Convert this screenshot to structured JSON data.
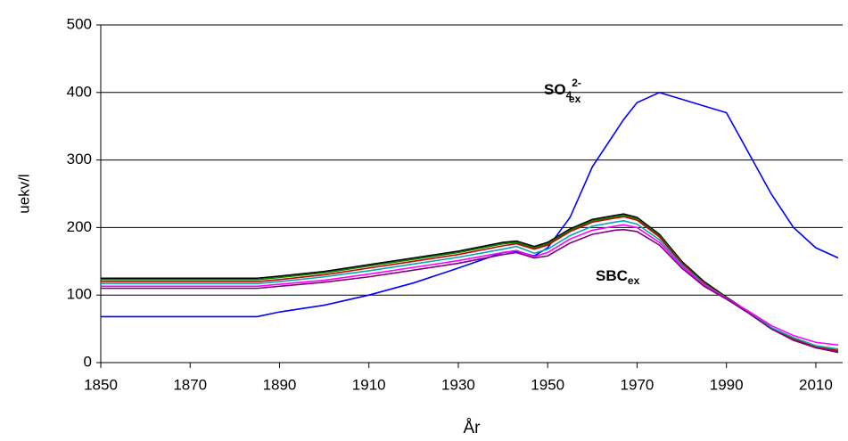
{
  "chart_data": {
    "type": "line",
    "x_label": "År",
    "y_label": "uekv/l",
    "x": [
      1850,
      1885,
      1890,
      1900,
      1910,
      1920,
      1930,
      1940,
      1943,
      1947,
      1950,
      1955,
      1960,
      1965,
      1967,
      1970,
      1975,
      1980,
      1985,
      1990,
      1995,
      2000,
      2005,
      2010,
      2015
    ],
    "series": [
      {
        "color": "#0000ff",
        "values": [
          68,
          68,
          75,
          85,
          100,
          118,
          140,
          163,
          165,
          158,
          170,
          215,
          290,
          340,
          360,
          385,
          400,
          390,
          380,
          370,
          310,
          250,
          200,
          170,
          155
        ]
      },
      {
        "color": "#000000",
        "values": [
          125,
          125,
          128,
          135,
          145,
          155,
          165,
          178,
          180,
          172,
          178,
          198,
          212,
          218,
          220,
          215,
          190,
          150,
          120,
          97,
          75,
          52,
          35,
          22,
          16
        ]
      },
      {
        "color": "#008000",
        "values": [
          123,
          123,
          126,
          133,
          143,
          153,
          163,
          176,
          178,
          170,
          176,
          196,
          210,
          216,
          218,
          213,
          188,
          148,
          118,
          96,
          74,
          51,
          35,
          22,
          17
        ]
      },
      {
        "color": "#cc0000",
        "values": [
          120,
          120,
          123,
          130,
          140,
          150,
          160,
          173,
          176,
          168,
          174,
          194,
          208,
          214,
          216,
          211,
          186,
          147,
          117,
          95,
          74,
          51,
          36,
          23,
          18
        ]
      },
      {
        "color": "#00aaaa",
        "values": [
          117,
          117,
          120,
          127,
          136,
          146,
          156,
          168,
          172,
          162,
          168,
          188,
          202,
          208,
          210,
          205,
          182,
          145,
          116,
          95,
          74,
          52,
          37,
          25,
          20
        ]
      },
      {
        "color": "#ff00ff",
        "values": [
          113,
          113,
          116,
          122,
          131,
          141,
          151,
          163,
          166,
          157,
          163,
          183,
          196,
          202,
          204,
          200,
          178,
          143,
          115,
          95,
          76,
          55,
          40,
          30,
          26
        ]
      },
      {
        "color": "#800080",
        "values": [
          110,
          110,
          113,
          119,
          127,
          137,
          147,
          160,
          163,
          155,
          158,
          177,
          190,
          196,
          197,
          194,
          174,
          140,
          113,
          94,
          73,
          50,
          33,
          22,
          15
        ]
      }
    ],
    "annotations": [
      {
        "parts": [
          "SO",
          "4",
          "2-",
          "ex"
        ]
      },
      {
        "parts": [
          "SBC",
          "ex"
        ]
      }
    ],
    "xlim": [
      1850,
      2016
    ],
    "ylim": [
      0,
      500
    ],
    "xticks": [
      1850,
      1870,
      1890,
      1910,
      1930,
      1950,
      1970,
      1990,
      2010
    ],
    "yticks": [
      0,
      100,
      200,
      300,
      400,
      500
    ],
    "grid": true
  }
}
